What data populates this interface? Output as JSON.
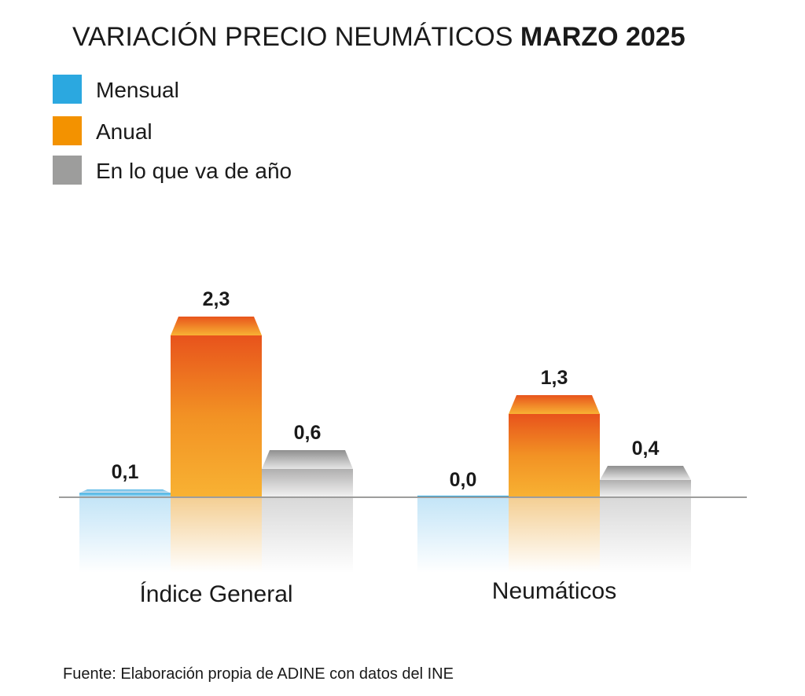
{
  "chart_data": {
    "type": "bar",
    "title": "VARIACIÓN PRECIO NEUMÁTICOS",
    "title_bold": "MARZO 2025",
    "categories": [
      "Índice General",
      "Neumáticos"
    ],
    "series": [
      {
        "name": "Mensual",
        "values": [
          0.1,
          0.0
        ],
        "labels": [
          "0,1",
          "0,0"
        ],
        "color": "#2ba8e0"
      },
      {
        "name": "Anual",
        "values": [
          2.3,
          1.3
        ],
        "labels": [
          "2,3",
          "1,3"
        ],
        "color": "#f39200"
      },
      {
        "name": "En lo que va de año",
        "values": [
          0.6,
          0.4
        ],
        "labels": [
          "0,6",
          "0,4"
        ],
        "color": "#9d9d9c"
      }
    ],
    "xlabel": "",
    "ylabel": "",
    "ylim": [
      0,
      2.5
    ],
    "grid": false,
    "legend": "top-left",
    "source": "Fuente: Elaboración propia de ADINE con datos del INE"
  }
}
